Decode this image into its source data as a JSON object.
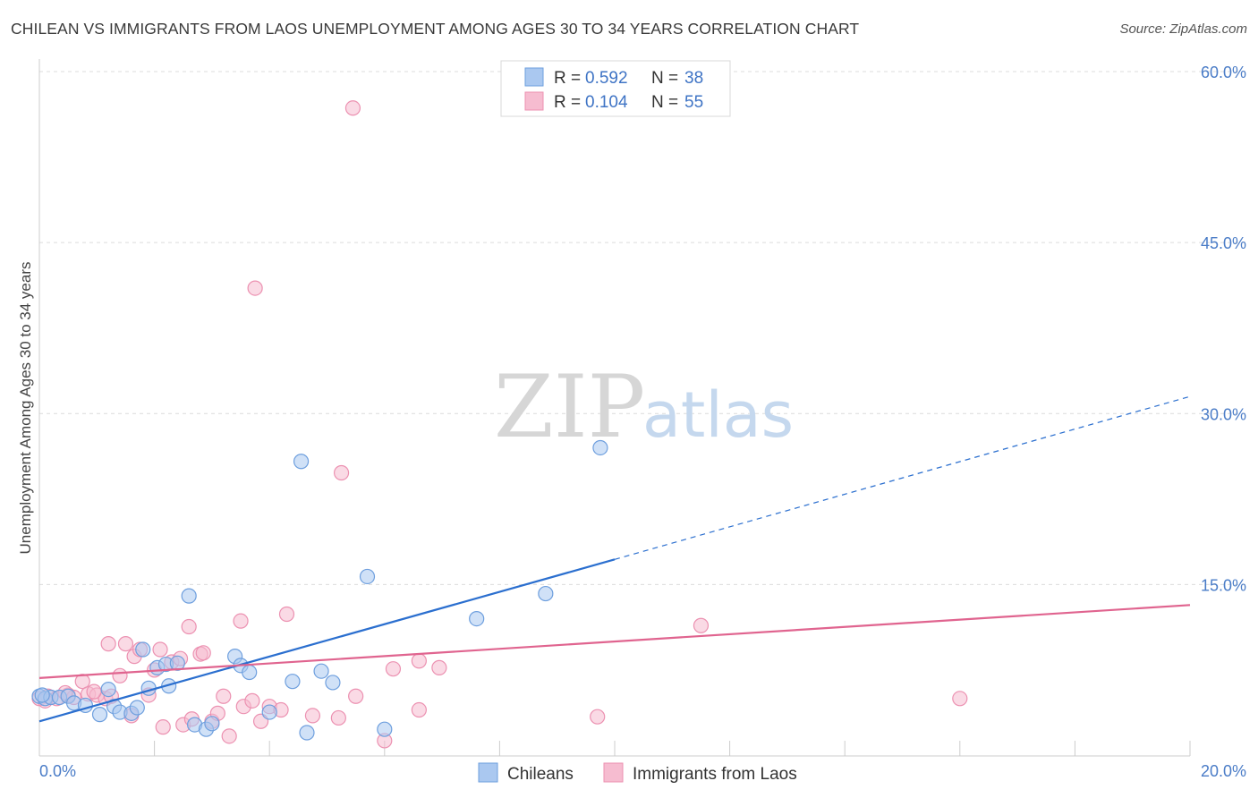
{
  "title": "CHILEAN VS IMMIGRANTS FROM LAOS UNEMPLOYMENT AMONG AGES 30 TO 34 YEARS CORRELATION CHART",
  "source": "Source: ZipAtlas.com",
  "watermark": {
    "zip": "ZIP",
    "atlas": "atlas"
  },
  "colors": {
    "blue_fill": "#aac8f0",
    "blue_stroke": "#6e9fde",
    "blue_line": "#2b6fcf",
    "pink_fill": "#f6bcd0",
    "pink_stroke": "#ec91b1",
    "pink_line": "#e0648f",
    "grid": "#dcdcdc",
    "axis": "#cccccc"
  },
  "chart_data": {
    "type": "scatter",
    "title": "CHILEAN VS IMMIGRANTS FROM LAOS UNEMPLOYMENT AMONG AGES 30 TO 34 YEARS CORRELATION CHART",
    "xlabel": "",
    "ylabel": "Unemployment Among Ages 30 to 34 years",
    "xlim": [
      0,
      20
    ],
    "ylim": [
      0,
      60
    ],
    "x_tick_labels": [
      "0.0%",
      "20.0%"
    ],
    "y_ticks": [
      15,
      30,
      45,
      60
    ],
    "y_tick_labels": [
      "15.0%",
      "30.0%",
      "45.0%",
      "60.0%"
    ],
    "grid": true,
    "legend": [
      {
        "r_label": "R = ",
        "r_value": "0.592",
        "n_label": "N = ",
        "n_value": "38"
      },
      {
        "r_label": "R = ",
        "r_value": "0.104",
        "n_label": "N = ",
        "n_value": "55"
      }
    ],
    "series": [
      {
        "name": "Chileans",
        "color": "#6e9fde",
        "trend": {
          "x0": 0,
          "y0": 3.0,
          "x1": 10,
          "y1": 17.2,
          "dash_to_x": 20,
          "dash_to_y": 31.5
        },
        "points": [
          [
            0.0,
            5.2
          ],
          [
            0.1,
            5.0
          ],
          [
            0.2,
            5.1
          ],
          [
            0.35,
            5.1
          ],
          [
            0.5,
            5.2
          ],
          [
            0.6,
            4.6
          ],
          [
            0.8,
            4.4
          ],
          [
            1.05,
            3.6
          ],
          [
            1.2,
            5.8
          ],
          [
            1.3,
            4.3
          ],
          [
            1.4,
            3.8
          ],
          [
            1.6,
            3.7
          ],
          [
            1.7,
            4.2
          ],
          [
            1.8,
            9.3
          ],
          [
            1.9,
            5.9
          ],
          [
            2.05,
            7.7
          ],
          [
            2.2,
            8.0
          ],
          [
            2.25,
            6.1
          ],
          [
            2.4,
            8.1
          ],
          [
            2.6,
            14.0
          ],
          [
            2.7,
            2.7
          ],
          [
            2.9,
            2.3
          ],
          [
            3.0,
            2.8
          ],
          [
            3.4,
            8.7
          ],
          [
            3.5,
            7.9
          ],
          [
            3.65,
            7.3
          ],
          [
            4.0,
            3.8
          ],
          [
            4.4,
            6.5
          ],
          [
            4.55,
            25.8
          ],
          [
            4.65,
            2.0
          ],
          [
            4.9,
            7.4
          ],
          [
            5.1,
            6.4
          ],
          [
            5.7,
            15.7
          ],
          [
            6.0,
            2.3
          ],
          [
            7.6,
            12.0
          ],
          [
            8.8,
            14.2
          ],
          [
            9.75,
            27.0
          ],
          [
            0.05,
            5.3
          ]
        ]
      },
      {
        "name": "Immigrants from Laos",
        "color": "#ec91b1",
        "trend": {
          "x0": 0,
          "y0": 6.8,
          "x1": 20,
          "y1": 13.2
        },
        "points": [
          [
            0.0,
            5.0
          ],
          [
            0.15,
            5.2
          ],
          [
            0.3,
            5.0
          ],
          [
            0.5,
            5.3
          ],
          [
            0.6,
            5.1
          ],
          [
            0.75,
            6.5
          ],
          [
            0.85,
            5.4
          ],
          [
            1.0,
            5.3
          ],
          [
            1.15,
            5.0
          ],
          [
            1.2,
            9.8
          ],
          [
            1.4,
            7.0
          ],
          [
            1.5,
            9.8
          ],
          [
            1.6,
            3.5
          ],
          [
            1.65,
            8.7
          ],
          [
            1.75,
            9.3
          ],
          [
            1.9,
            5.3
          ],
          [
            2.0,
            7.5
          ],
          [
            2.1,
            9.3
          ],
          [
            2.15,
            2.5
          ],
          [
            2.3,
            8.2
          ],
          [
            2.45,
            8.5
          ],
          [
            2.5,
            2.7
          ],
          [
            2.6,
            11.3
          ],
          [
            2.65,
            3.2
          ],
          [
            2.8,
            8.9
          ],
          [
            2.85,
            9.0
          ],
          [
            3.0,
            3.0
          ],
          [
            3.1,
            3.7
          ],
          [
            3.2,
            5.2
          ],
          [
            3.3,
            1.7
          ],
          [
            3.5,
            11.8
          ],
          [
            3.55,
            4.3
          ],
          [
            3.7,
            4.8
          ],
          [
            3.75,
            41.0
          ],
          [
            3.85,
            3.0
          ],
          [
            4.0,
            4.3
          ],
          [
            4.2,
            4.0
          ],
          [
            4.3,
            12.4
          ],
          [
            4.75,
            3.5
          ],
          [
            5.2,
            3.3
          ],
          [
            5.25,
            24.8
          ],
          [
            5.45,
            56.8
          ],
          [
            5.5,
            5.2
          ],
          [
            6.0,
            1.3
          ],
          [
            6.15,
            7.6
          ],
          [
            6.6,
            4.0
          ],
          [
            6.6,
            8.3
          ],
          [
            6.95,
            7.7
          ],
          [
            9.7,
            3.4
          ],
          [
            11.5,
            11.4
          ],
          [
            16.0,
            5.0
          ],
          [
            0.1,
            4.8
          ],
          [
            0.45,
            5.5
          ],
          [
            1.25,
            5.2
          ],
          [
            0.95,
            5.6
          ]
        ]
      }
    ]
  },
  "bottom_legend": [
    "Chileans",
    "Immigrants from Laos"
  ]
}
